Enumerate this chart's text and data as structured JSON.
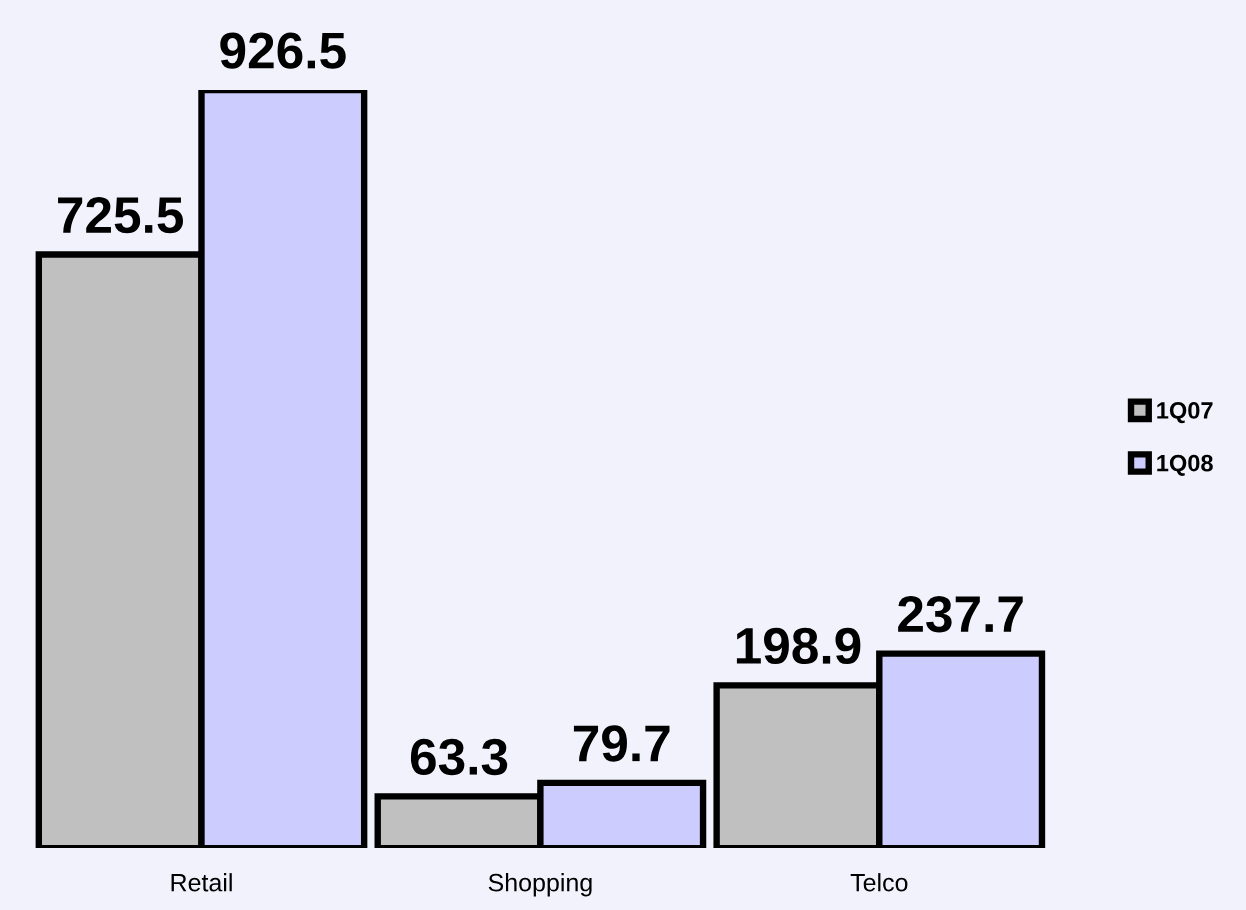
{
  "chart_data": {
    "type": "bar",
    "categories": [
      "Retail",
      "Shopping",
      "Telco"
    ],
    "series": [
      {
        "name": "1Q07",
        "color": "#c0c0c0",
        "values": [
          725.5,
          63.3,
          198.9
        ]
      },
      {
        "name": "1Q08",
        "color": "#ccccff",
        "values": [
          926.5,
          79.7,
          237.7
        ]
      }
    ],
    "data_labels": true,
    "legend": "right",
    "tick_labels": "x",
    "grid": false
  }
}
